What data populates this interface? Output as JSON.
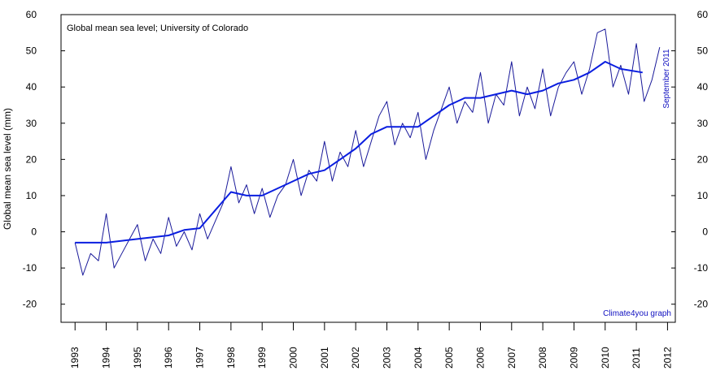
{
  "chart_data": {
    "type": "line",
    "title": "Global mean sea level; University of Colorado",
    "ylabel": "Global mean sea level (mm)",
    "annotations": [
      "September 2011",
      "Climate4you graph"
    ],
    "xlim": [
      1992.55,
      2012.25
    ],
    "ylim": [
      -25,
      60
    ],
    "xticks": [
      1993,
      1994,
      1995,
      1996,
      1997,
      1998,
      1999,
      2000,
      2001,
      2002,
      2003,
      2004,
      2005,
      2006,
      2007,
      2008,
      2009,
      2010,
      2011,
      2012
    ],
    "yticks": [
      -20,
      -10,
      0,
      10,
      20,
      30,
      40,
      50,
      60
    ],
    "series": [
      {
        "color": "#1a1a9a",
        "width": 1,
        "x": [
          1993.0,
          1993.25,
          1993.5,
          1993.75,
          1994.0,
          1994.25,
          1994.5,
          1994.75,
          1995.0,
          1995.25,
          1995.5,
          1995.75,
          1996.0,
          1996.25,
          1996.5,
          1996.75,
          1997.0,
          1997.25,
          1997.5,
          1997.75,
          1998.0,
          1998.25,
          1998.5,
          1998.75,
          1999.0,
          1999.25,
          1999.5,
          1999.75,
          2000.0,
          2000.25,
          2000.5,
          2000.75,
          2001.0,
          2001.25,
          2001.5,
          2001.75,
          2002.0,
          2002.25,
          2002.5,
          2002.75,
          2003.0,
          2003.25,
          2003.5,
          2003.75,
          2004.0,
          2004.25,
          2004.5,
          2004.75,
          2005.0,
          2005.25,
          2005.5,
          2005.75,
          2006.0,
          2006.25,
          2006.5,
          2006.75,
          2007.0,
          2007.25,
          2007.5,
          2007.75,
          2008.0,
          2008.25,
          2008.5,
          2008.75,
          2009.0,
          2009.25,
          2009.5,
          2009.75,
          2010.0,
          2010.25,
          2010.5,
          2010.75,
          2011.0,
          2011.25,
          2011.5,
          2011.75
        ],
        "values": [
          -3,
          -12,
          -6,
          -8,
          5,
          -10,
          -6,
          -2,
          2,
          -8,
          -2,
          -6,
          4,
          -4,
          0,
          -5,
          5,
          -2,
          3,
          8,
          18,
          8,
          13,
          5,
          12,
          4,
          10,
          13,
          20,
          10,
          17,
          14,
          25,
          14,
          22,
          18,
          28,
          18,
          25,
          32,
          36,
          24,
          30,
          26,
          33,
          20,
          28,
          34,
          40,
          30,
          36,
          33,
          44,
          30,
          38,
          35,
          47,
          32,
          40,
          34,
          45,
          32,
          40,
          44,
          47,
          38,
          45,
          55,
          56,
          40,
          46,
          38,
          52,
          36,
          42,
          51
        ]
      },
      {
        "color": "#0a1ee0",
        "width": 2,
        "x": [
          1993.0,
          1993.5,
          1994.0,
          1995.0,
          1996.0,
          1996.5,
          1997.0,
          1997.5,
          1998.0,
          1998.5,
          1999.0,
          1999.5,
          2000.0,
          2000.5,
          2001.0,
          2001.5,
          2002.0,
          2002.5,
          2003.0,
          2004.0,
          2004.5,
          2005.0,
          2005.5,
          2006.0,
          2006.5,
          2007.0,
          2007.5,
          2008.0,
          2008.5,
          2009.0,
          2009.5,
          2010.0,
          2010.5,
          2011.2
        ],
        "values": [
          -3,
          -3,
          -3,
          -2,
          -1,
          0.5,
          1,
          6,
          11,
          10,
          10,
          12,
          14,
          16,
          17,
          20,
          23,
          27,
          29,
          29,
          32,
          35,
          37,
          37,
          38,
          39,
          38,
          39,
          41,
          42,
          44,
          47,
          45,
          44
        ]
      }
    ]
  }
}
